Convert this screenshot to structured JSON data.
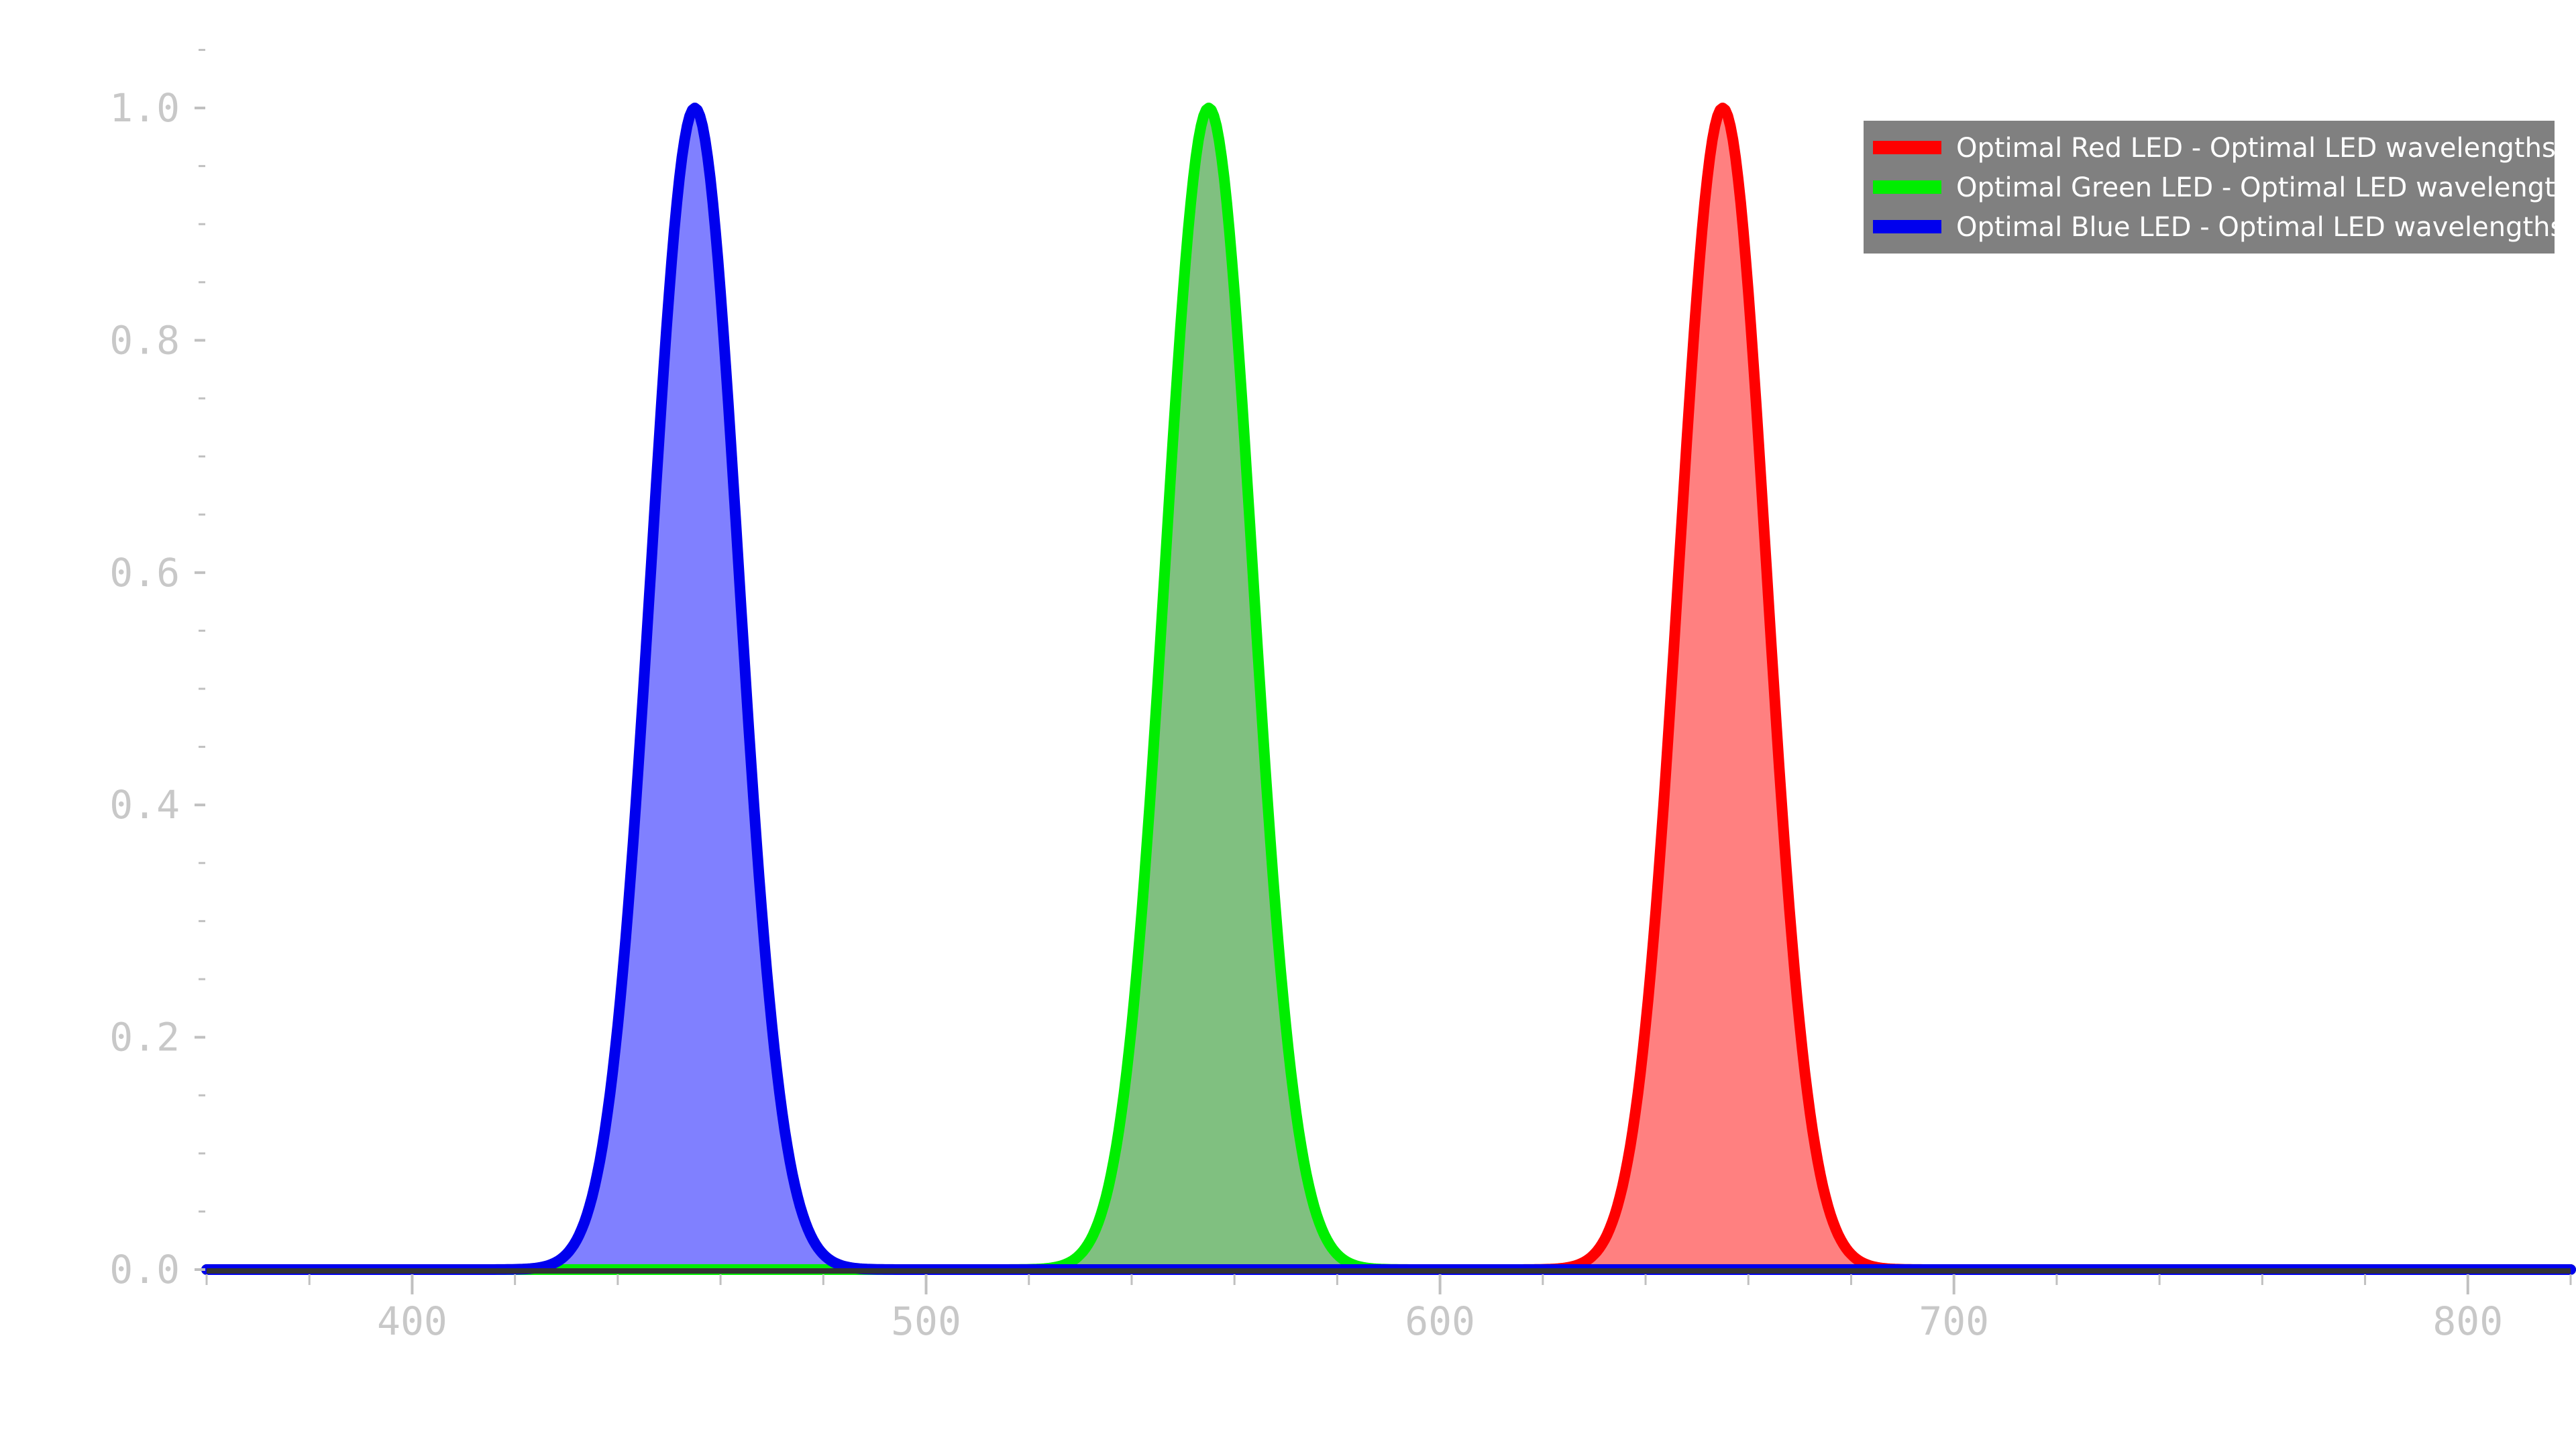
{
  "chart_data": {
    "type": "area",
    "title": "",
    "xlabel": "",
    "ylabel": "",
    "xlim": [
      360,
      820
    ],
    "ylim": [
      0,
      1.05
    ],
    "x_ticks": [
      400,
      500,
      600,
      700,
      800
    ],
    "x_tick_labels": [
      "400",
      "500",
      "600",
      "700",
      "800"
    ],
    "y_ticks": [
      0.0,
      0.2,
      0.4,
      0.6,
      0.8,
      1.0
    ],
    "y_tick_labels": [
      "0.0",
      "0.2",
      "0.4",
      "0.6",
      "0.8",
      "1.0"
    ],
    "grid": false,
    "legend_position": "top-right",
    "baseline_y": 0,
    "series": [
      {
        "name": "Optimal Red LED - Optimal LED wavelengths",
        "peak_wavelength": 655,
        "peak_value": 1.0,
        "fwhm": 20,
        "color": "#ff0000",
        "fill_color": "#ff8080",
        "x": [
          620,
          630,
          635,
          640,
          645,
          650,
          655,
          660,
          665,
          670,
          675,
          680,
          690
        ],
        "values": [
          0.0,
          0.02,
          0.06,
          0.18,
          0.42,
          0.78,
          1.0,
          0.78,
          0.42,
          0.18,
          0.06,
          0.02,
          0.0
        ]
      },
      {
        "name": "Optimal Green LED - Optimal LED wavelengths",
        "peak_wavelength": 555,
        "peak_value": 1.0,
        "fwhm": 20,
        "color": "#00ee00",
        "fill_color": "#80c080",
        "x": [
          520,
          530,
          535,
          540,
          545,
          550,
          555,
          560,
          565,
          570,
          575,
          580,
          590
        ],
        "values": [
          0.0,
          0.02,
          0.06,
          0.18,
          0.42,
          0.78,
          1.0,
          0.78,
          0.42,
          0.18,
          0.06,
          0.02,
          0.0
        ]
      },
      {
        "name": "Optimal Blue LED - Optimal LED wavelengths",
        "peak_wavelength": 455,
        "peak_value": 1.0,
        "fwhm": 20,
        "color": "#0000ee",
        "fill_color": "#8080ff",
        "x": [
          420,
          430,
          435,
          440,
          445,
          450,
          455,
          460,
          465,
          470,
          475,
          480,
          490
        ],
        "values": [
          0.0,
          0.02,
          0.06,
          0.18,
          0.42,
          0.78,
          1.0,
          0.78,
          0.42,
          0.18,
          0.06,
          0.02,
          0.0
        ]
      }
    ],
    "legend_background": "#808080"
  }
}
